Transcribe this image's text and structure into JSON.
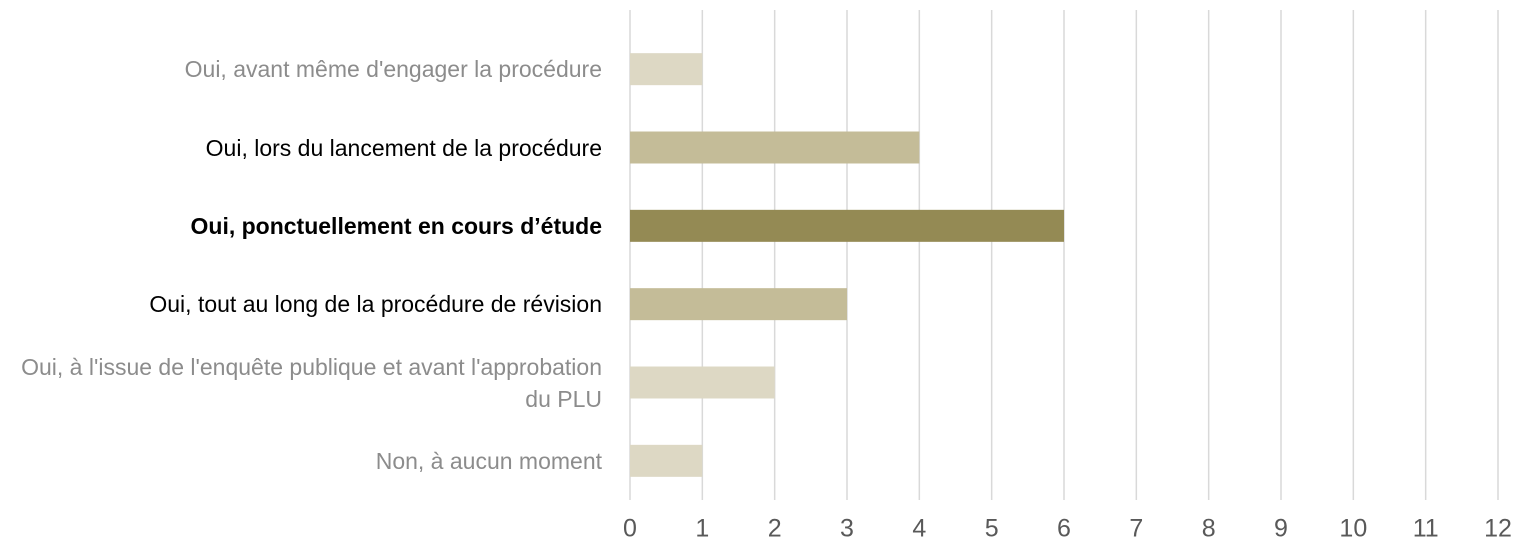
{
  "chart_data": {
    "type": "bar",
    "orientation": "horizontal",
    "categories": [
      "Oui, avant même d'engager la procédure",
      "Oui, lors du lancement de la procédure",
      "Oui, ponctuellement en cours d’étude",
      "Oui, tout au long de la procédure de révision",
      "Oui, à l'issue de l'enquête publique et avant l'approbation du PLU",
      "Non, à aucun moment"
    ],
    "values": [
      1,
      4,
      6,
      3,
      2,
      1
    ],
    "colors": [
      "#ddd8c4",
      "#c4bc98",
      "#948a54",
      "#c4bc98",
      "#ddd8c4",
      "#ddd8c4"
    ],
    "label_colors": [
      "#8c8c8c",
      "#000000",
      "#000000",
      "#000000",
      "#8c8c8c",
      "#8c8c8c"
    ],
    "label_bold": [
      false,
      false,
      true,
      false,
      false,
      false
    ],
    "xlim": [
      0,
      12
    ],
    "xticks": [
      0,
      1,
      2,
      3,
      4,
      5,
      6,
      7,
      8,
      9,
      10,
      11,
      12
    ],
    "grid": true
  }
}
